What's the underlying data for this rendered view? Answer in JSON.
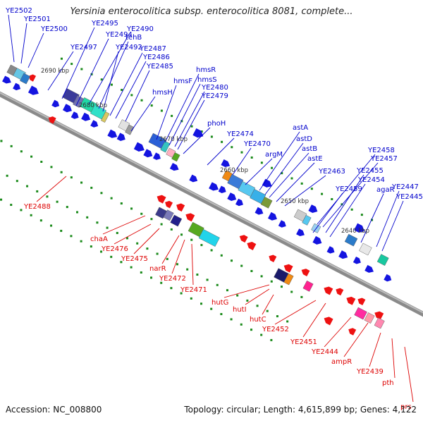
{
  "title": "Yersinia enterocolitica subsp. enterocolitica 8081, complete...",
  "footer": {
    "accession": "Accession: NC_008800",
    "summary": "Topology: circular; Length: 4,615,899 bp; Genes: 4,122"
  },
  "colors": {
    "forward_label": "#0000cc",
    "reverse_label": "#dd0000",
    "forward_arrow": "#1414e0",
    "reverse_arrow": "#ee1111",
    "backbone": "#888888",
    "tick_dot": "#1a8a1a"
  },
  "scale_ticks": [
    "2690 kbp",
    "2680 kbp",
    "2670 kbp",
    "2660 kbp",
    "2650 kbp",
    "2640 kbp"
  ],
  "forward_genes": [
    "YE2502",
    "YE2501",
    "YE2500",
    "YE2497",
    "YE2495",
    "YE2494",
    "YE2490",
    "tehB",
    "YE2492",
    "YE2487",
    "YE2486",
    "YE2485",
    "hmsH",
    "hmsF",
    "hmsR",
    "hmsS",
    "YE2480",
    "YE2479",
    "phoH",
    "YE2474",
    "YE2470",
    "argM",
    "astA",
    "astD",
    "astB",
    "astE",
    "YE2463",
    "YE2458",
    "YE2457",
    "YE2455",
    "YE2454",
    "YE2459",
    "agaR",
    "YE2447",
    "YE2445"
  ],
  "reverse_genes": [
    "YE2488",
    "chaA",
    "YE2476",
    "YE2475",
    "narR",
    "YE2472",
    "YE2471",
    "hutG",
    "hutI",
    "hutC",
    "YE2452",
    "YE2451",
    "YE2444",
    "ampR",
    "YE2439",
    "pth",
    "prs"
  ]
}
